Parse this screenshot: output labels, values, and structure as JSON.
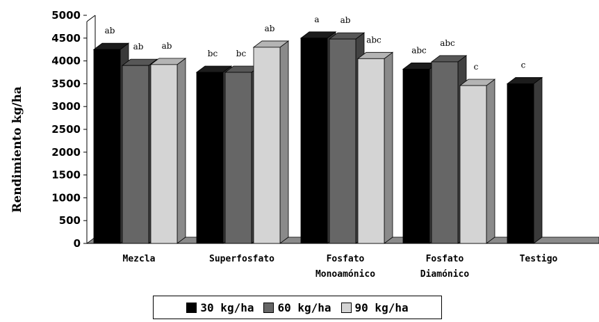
{
  "chart_data": {
    "type": "bar",
    "ylabel": "Rendimiento kg/ha",
    "ylim": [
      0,
      5000
    ],
    "yticks": [
      0,
      500,
      1000,
      1500,
      2000,
      2500,
      3000,
      3500,
      4000,
      4500,
      5000
    ],
    "categories": [
      [
        "Mezcla"
      ],
      [
        "Superfosfato"
      ],
      [
        "Fosfato",
        "Monoamónico"
      ],
      [
        "Fosfato",
        "Diamónico"
      ],
      [
        "Testigo"
      ]
    ],
    "series": [
      {
        "name": "30 kg/ha",
        "color": "#000000",
        "values": [
          4250,
          3750,
          4500,
          3820,
          3500
        ],
        "labels": [
          "ab",
          "bc",
          "a",
          "abc",
          "c"
        ]
      },
      {
        "name": "60 kg/ha",
        "color": "#666666",
        "values": [
          3900,
          3750,
          4480,
          3980,
          null
        ],
        "labels": [
          "ab",
          "bc",
          "ab",
          "abc",
          null
        ]
      },
      {
        "name": "90 kg/ha",
        "color": "#d4d4d4",
        "values": [
          3920,
          4300,
          4050,
          3460,
          null
        ],
        "labels": [
          "ab",
          "ab",
          "abc",
          "c",
          null
        ]
      }
    ],
    "grid": false,
    "legend_position": "bottom",
    "style": "3d-column"
  }
}
